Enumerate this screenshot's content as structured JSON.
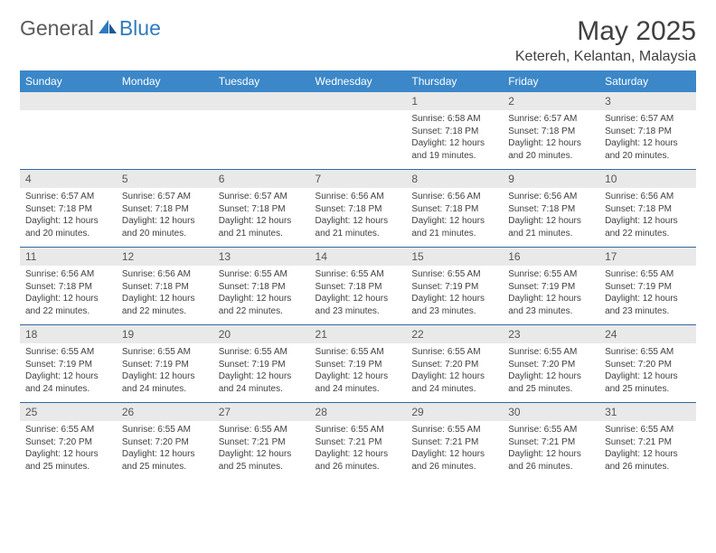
{
  "logo": {
    "general": "General",
    "blue": "Blue"
  },
  "title": "May 2025",
  "location": "Ketereh, Kelantan, Malaysia",
  "colors": {
    "header_bg": "#3b87c8",
    "daynum_bg": "#e9e9e9",
    "rule": "#2f6aa0"
  },
  "weekdays": [
    "Sunday",
    "Monday",
    "Tuesday",
    "Wednesday",
    "Thursday",
    "Friday",
    "Saturday"
  ],
  "weeks": [
    [
      null,
      null,
      null,
      null,
      {
        "n": "1",
        "sr": "6:58 AM",
        "ss": "7:18 PM",
        "dl": "12 hours and 19 minutes."
      },
      {
        "n": "2",
        "sr": "6:57 AM",
        "ss": "7:18 PM",
        "dl": "12 hours and 20 minutes."
      },
      {
        "n": "3",
        "sr": "6:57 AM",
        "ss": "7:18 PM",
        "dl": "12 hours and 20 minutes."
      }
    ],
    [
      {
        "n": "4",
        "sr": "6:57 AM",
        "ss": "7:18 PM",
        "dl": "12 hours and 20 minutes."
      },
      {
        "n": "5",
        "sr": "6:57 AM",
        "ss": "7:18 PM",
        "dl": "12 hours and 20 minutes."
      },
      {
        "n": "6",
        "sr": "6:57 AM",
        "ss": "7:18 PM",
        "dl": "12 hours and 21 minutes."
      },
      {
        "n": "7",
        "sr": "6:56 AM",
        "ss": "7:18 PM",
        "dl": "12 hours and 21 minutes."
      },
      {
        "n": "8",
        "sr": "6:56 AM",
        "ss": "7:18 PM",
        "dl": "12 hours and 21 minutes."
      },
      {
        "n": "9",
        "sr": "6:56 AM",
        "ss": "7:18 PM",
        "dl": "12 hours and 21 minutes."
      },
      {
        "n": "10",
        "sr": "6:56 AM",
        "ss": "7:18 PM",
        "dl": "12 hours and 22 minutes."
      }
    ],
    [
      {
        "n": "11",
        "sr": "6:56 AM",
        "ss": "7:18 PM",
        "dl": "12 hours and 22 minutes."
      },
      {
        "n": "12",
        "sr": "6:56 AM",
        "ss": "7:18 PM",
        "dl": "12 hours and 22 minutes."
      },
      {
        "n": "13",
        "sr": "6:55 AM",
        "ss": "7:18 PM",
        "dl": "12 hours and 22 minutes."
      },
      {
        "n": "14",
        "sr": "6:55 AM",
        "ss": "7:18 PM",
        "dl": "12 hours and 23 minutes."
      },
      {
        "n": "15",
        "sr": "6:55 AM",
        "ss": "7:19 PM",
        "dl": "12 hours and 23 minutes."
      },
      {
        "n": "16",
        "sr": "6:55 AM",
        "ss": "7:19 PM",
        "dl": "12 hours and 23 minutes."
      },
      {
        "n": "17",
        "sr": "6:55 AM",
        "ss": "7:19 PM",
        "dl": "12 hours and 23 minutes."
      }
    ],
    [
      {
        "n": "18",
        "sr": "6:55 AM",
        "ss": "7:19 PM",
        "dl": "12 hours and 24 minutes."
      },
      {
        "n": "19",
        "sr": "6:55 AM",
        "ss": "7:19 PM",
        "dl": "12 hours and 24 minutes."
      },
      {
        "n": "20",
        "sr": "6:55 AM",
        "ss": "7:19 PM",
        "dl": "12 hours and 24 minutes."
      },
      {
        "n": "21",
        "sr": "6:55 AM",
        "ss": "7:19 PM",
        "dl": "12 hours and 24 minutes."
      },
      {
        "n": "22",
        "sr": "6:55 AM",
        "ss": "7:20 PM",
        "dl": "12 hours and 24 minutes."
      },
      {
        "n": "23",
        "sr": "6:55 AM",
        "ss": "7:20 PM",
        "dl": "12 hours and 25 minutes."
      },
      {
        "n": "24",
        "sr": "6:55 AM",
        "ss": "7:20 PM",
        "dl": "12 hours and 25 minutes."
      }
    ],
    [
      {
        "n": "25",
        "sr": "6:55 AM",
        "ss": "7:20 PM",
        "dl": "12 hours and 25 minutes."
      },
      {
        "n": "26",
        "sr": "6:55 AM",
        "ss": "7:20 PM",
        "dl": "12 hours and 25 minutes."
      },
      {
        "n": "27",
        "sr": "6:55 AM",
        "ss": "7:21 PM",
        "dl": "12 hours and 25 minutes."
      },
      {
        "n": "28",
        "sr": "6:55 AM",
        "ss": "7:21 PM",
        "dl": "12 hours and 26 minutes."
      },
      {
        "n": "29",
        "sr": "6:55 AM",
        "ss": "7:21 PM",
        "dl": "12 hours and 26 minutes."
      },
      {
        "n": "30",
        "sr": "6:55 AM",
        "ss": "7:21 PM",
        "dl": "12 hours and 26 minutes."
      },
      {
        "n": "31",
        "sr": "6:55 AM",
        "ss": "7:21 PM",
        "dl": "12 hours and 26 minutes."
      }
    ]
  ],
  "labels": {
    "sunrise": "Sunrise:",
    "sunset": "Sunset:",
    "daylight": "Daylight:"
  }
}
